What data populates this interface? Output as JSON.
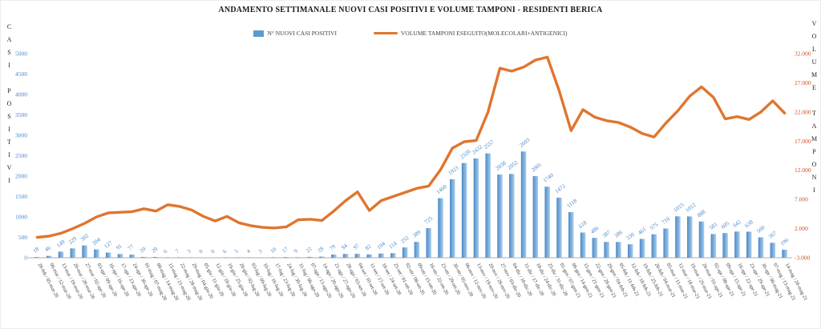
{
  "chart_data": {
    "type": "combo-bar-line",
    "title": "ANDAMENTO SETTIMANALE NUOVI CASI POSITIVI E VOLUME TAMPONI - RESIDENTI BERICA",
    "grid": false,
    "legend_position": "top",
    "categories": [
      "28-feb / 05-mar-20",
      "06-mar / 12-mar-20",
      "13-mar / 19-mar-20",
      "20-mar / 26-mar-20",
      "27-mar / 02-apr-20",
      "03-apr / 09-apr-20",
      "10-apr / 16-apr-20",
      "17-apr / 23-apr-20",
      "24-apr / 30-apr-20",
      "01-mag / 07-mag-20",
      "08-mag / 14-mag-20",
      "15-mag / 21-mag-20",
      "22-mag / 28-mag-20",
      "29-mag / 04-giu-20",
      "05-giu / 11-giu-20",
      "12-giu / 18-giu-20",
      "19-giu / 25-giu-20",
      "26-giu / 02-lug-20",
      "03-lug / 09-lug-20",
      "10-lug / 16-lug-20",
      "17-lug / 23-lug-20",
      "24-lug / 30-lug-20",
      "31-lug / 06-ago-20",
      "07-ago / 13-ago-20",
      "14-ago / 20-ago-20",
      "21-ago / 27-ago-20",
      "28-ago / 03-set-20",
      "04-set / 10-set-20",
      "11-set / 17-set-20",
      "18-set / 24-set-20",
      "25-set / 01-ott-20",
      "02-ott / 08-ott-20",
      "09-ott / 15-ott-20",
      "16-ott / 22-ott-20",
      "23-ott / 29-ott-20",
      "30-ott / 05-nov-20",
      "06-nov / 12-nov-20",
      "13-nov / 19-nov-20",
      "20-nov / 26-nov-20",
      "27-nov / 03-dic-20",
      "04-dic / 10-dic-20",
      "11-dic / 17-dic-20",
      "18-dic / 24-dic-20",
      "25-dic / 31-dic-20",
      "01-gen / 07-gen-21",
      "08-gen / 14-gen-21",
      "15-gen / 21-gen-21",
      "22-gen / 28-gen-21",
      "29-gen / 04-feb-21",
      "05-feb / 11-feb-21",
      "12-feb / 18-feb-21",
      "19-feb / 25-feb-21",
      "26-feb / 04-mar-21",
      "05-mar / 11-mar-21",
      "12-mar / 18-mar-21",
      "19-mar / 25-mar-21",
      "26-mar / 01-apr-21",
      "02-apr / 08-apr-21",
      "09-apr / 15-apr-21",
      "16-apr / 22-apr-21",
      "23-apr / 29-apr-21",
      "30-apr / 06-mag-21",
      "07-mag / 13-mag-21",
      "14-mag / 20-mag-21"
    ],
    "series": [
      {
        "name": "N° NUOVI CASI POSITIVI",
        "type": "bar",
        "axis": "left",
        "color": "#5b9bd5",
        "data_labels_shown": true,
        "values": [
          18,
          46,
          149,
          229,
          302,
          204,
          127,
          91,
          77,
          20,
          20,
          6,
          7,
          3,
          0,
          0,
          6,
          5,
          4,
          3,
          10,
          17,
          9,
          22,
          28,
          79,
          94,
          97,
          82,
          104,
          114,
          252,
          389,
          725,
          1460,
          1923,
          2320,
          2432,
          2557,
          2038,
          2052,
          2603,
          2001,
          1740,
          1472,
          1118,
          618,
          486,
          387,
          386,
          330,
          461,
          575,
          716,
          1015,
          1012,
          888,
          581,
          605,
          642,
          638,
          500,
          367,
          196
        ]
      },
      {
        "name": "VOLUME TAMPONI ESEGUITO(MOLECOLARI+ANTIGENICI)",
        "type": "line",
        "axis": "right",
        "color": "#e0752e",
        "values_estimated_from_gridlines": true,
        "values": [
          500,
          700,
          1200,
          2000,
          2900,
          4000,
          4700,
          4800,
          4900,
          5400,
          5000,
          6100,
          5800,
          5200,
          4100,
          3300,
          4100,
          3000,
          2500,
          2200,
          2100,
          2300,
          3500,
          3600,
          3400,
          5000,
          6800,
          8300,
          5100,
          6800,
          7500,
          8200,
          8900,
          9300,
          12100,
          15800,
          16900,
          17100,
          22000,
          29500,
          29000,
          29700,
          30900,
          31400,
          25600,
          18800,
          22400,
          21100,
          20500,
          20200,
          19400,
          18300,
          17700,
          20100,
          22200,
          24700,
          26300,
          24500,
          20800,
          21200,
          20700,
          22000,
          23900,
          21800
        ]
      }
    ],
    "left_axis": {
      "title": "CASI POSITIVI",
      "min": 0,
      "max": 5000,
      "step": 500,
      "tick_labels": [
        "0",
        "500",
        "1000",
        "1500",
        "2000",
        "2500",
        "3000",
        "3500",
        "4000",
        "4500",
        "5000"
      ],
      "color": "#4a86c8"
    },
    "right_axis": {
      "title": "VOLUME TAMPONI",
      "min": -3000,
      "max": 32000,
      "step": 5000,
      "tick_labels": [
        "-3.000",
        "2.000",
        "7.000",
        "12.000",
        "17.000",
        "22.000",
        "27.000",
        "32.000"
      ],
      "color": "#d14f21"
    },
    "x_axis": {
      "label_color": "#3a3a3a",
      "label_rotation_deg": 62
    }
  }
}
